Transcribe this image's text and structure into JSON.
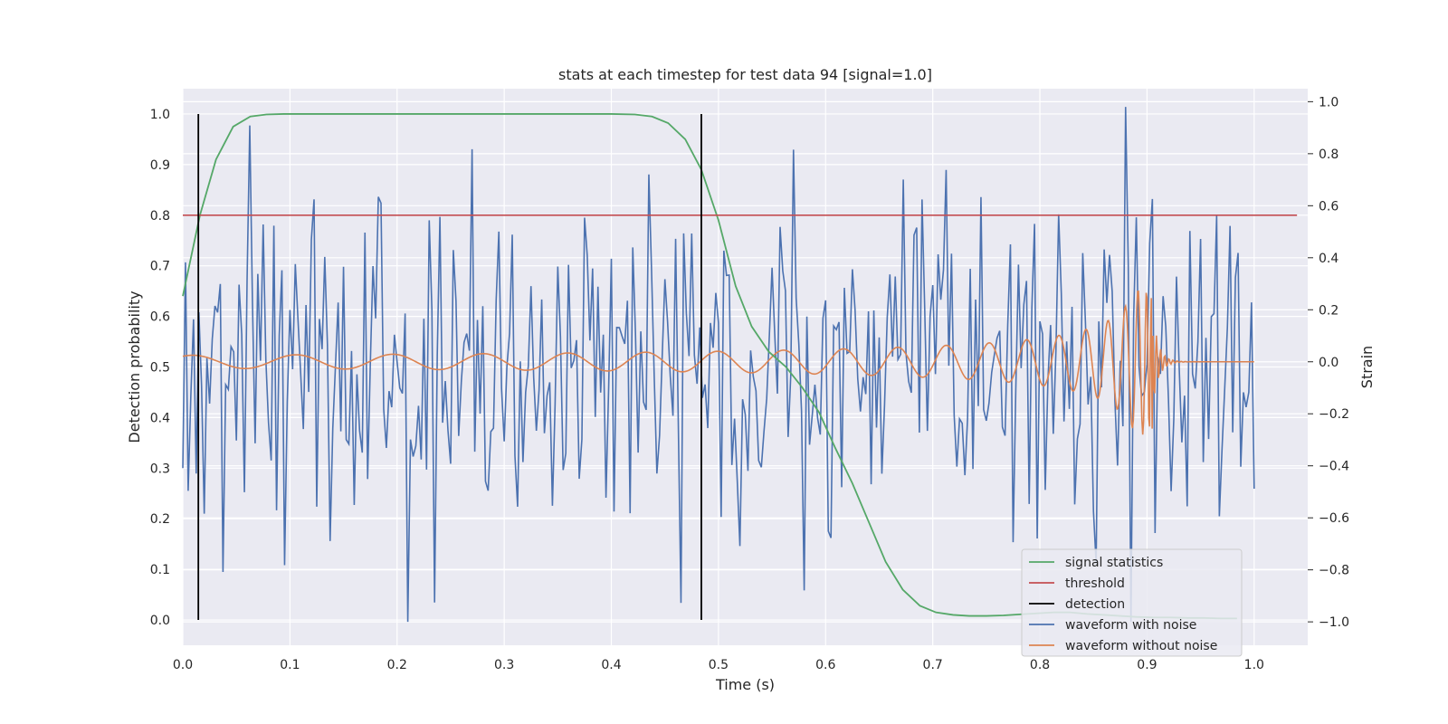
{
  "chart_data": {
    "type": "line",
    "title": "stats at each timestep for test data 94 [signal=1.0]",
    "xlabel": "Time (s)",
    "ylabel": "Detection probability",
    "ylabel_right": "Strain",
    "xlim": [
      0.0,
      1.05
    ],
    "ylim": [
      -0.05,
      1.05
    ],
    "ylim_right": [
      -1.09,
      1.05
    ],
    "x_ticks": [
      "0.0",
      "0.1",
      "0.2",
      "0.3",
      "0.4",
      "0.5",
      "0.6",
      "0.7",
      "0.8",
      "0.9",
      "1.0"
    ],
    "x_tick_values": [
      0.0,
      0.1,
      0.2,
      0.3,
      0.4,
      0.5,
      0.6,
      0.7,
      0.8,
      0.9,
      1.0
    ],
    "y_ticks": [
      "0.0",
      "0.1",
      "0.2",
      "0.3",
      "0.4",
      "0.5",
      "0.6",
      "0.7",
      "0.8",
      "0.9",
      "1.0"
    ],
    "y_tick_values": [
      0.0,
      0.1,
      0.2,
      0.3,
      0.4,
      0.5,
      0.6,
      0.7,
      0.8,
      0.9,
      1.0
    ],
    "y_right_ticks": [
      "−1.0",
      "−0.8",
      "−0.6",
      "−0.4",
      "−0.2",
      "0.0",
      "0.2",
      "0.4",
      "0.6",
      "0.8",
      "1.0"
    ],
    "y_right_tick_values": [
      -1.0,
      -0.8,
      -0.6,
      -0.4,
      -0.2,
      0.0,
      0.2,
      0.4,
      0.6,
      0.8,
      1.0
    ],
    "grid": true,
    "legend_position": "lower-right",
    "series": [
      {
        "name": "signal statistics",
        "color": "#55a868",
        "axis": "left",
        "x": [
          0.0,
          0.016,
          0.031,
          0.047,
          0.063,
          0.078,
          0.094,
          0.2,
          0.3,
          0.4,
          0.422,
          0.438,
          0.453,
          0.469,
          0.484,
          0.5,
          0.516,
          0.531,
          0.547,
          0.563,
          0.578,
          0.594,
          0.609,
          0.625,
          0.641,
          0.656,
          0.672,
          0.688,
          0.703,
          0.719,
          0.734,
          0.75,
          0.766,
          0.781,
          0.797,
          0.813,
          0.828,
          0.844,
          0.86,
          0.875,
          0.89,
          0.906,
          0.922,
          0.938,
          0.953,
          0.969,
          0.984
        ],
        "y": [
          0.64,
          0.8,
          0.91,
          0.975,
          0.995,
          0.999,
          1.0,
          1.0,
          1.0,
          1.0,
          0.999,
          0.995,
          0.982,
          0.95,
          0.89,
          0.79,
          0.66,
          0.58,
          0.53,
          0.5,
          0.46,
          0.41,
          0.34,
          0.27,
          0.19,
          0.115,
          0.06,
          0.028,
          0.015,
          0.01,
          0.008,
          0.008,
          0.009,
          0.011,
          0.013,
          0.015,
          0.015,
          0.012,
          0.01,
          0.008,
          0.006,
          0.005,
          0.005,
          0.004,
          0.004,
          0.003,
          0.003
        ]
      },
      {
        "name": "threshold",
        "color": "#c44e52",
        "axis": "left",
        "x": [
          0.0,
          1.04
        ],
        "y": [
          0.8,
          0.8
        ]
      },
      {
        "name": "detection",
        "color": "#000000",
        "axis": "left",
        "type": "vline",
        "x": [
          0.0145,
          0.484
        ],
        "y": [
          0.0,
          1.0
        ]
      },
      {
        "name": "waveform with noise",
        "color": "#4c72b0",
        "axis": "right",
        "dt": 0.0025,
        "amplitude": 0.33,
        "samples": 400,
        "note_visible": false
      },
      {
        "name": "waveform without noise",
        "color": "#dd8452",
        "axis": "right",
        "dt": 0.0025,
        "merger_time": 0.905,
        "end_time": 1.0
      }
    ]
  }
}
